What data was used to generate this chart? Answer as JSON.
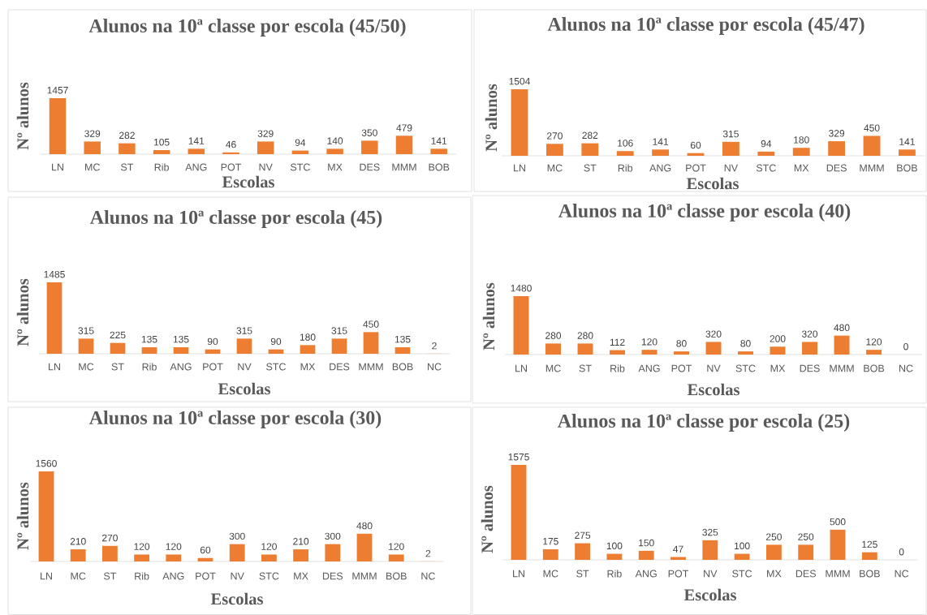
{
  "chart_data": [
    {
      "type": "bar",
      "title": "Alunos na 10ª classe por escola (45/50)",
      "xlabel": "Escolas",
      "ylabel": "Nº alunos",
      "categories": [
        "LN",
        "MC",
        "ST",
        "Rib",
        "ANG",
        "POT",
        "NV",
        "STC",
        "MX",
        "DES",
        "MMM",
        "BOB"
      ],
      "values": [
        1457,
        329,
        282,
        105,
        141,
        46,
        329,
        94,
        140,
        350,
        479,
        141
      ],
      "color": "#ed7d31",
      "data_labels": true,
      "tick_labels": "x"
    },
    {
      "type": "bar",
      "title": "Alunos na 10ª classe por escola (45/47)",
      "xlabel": "Escolas",
      "ylabel": "Nº alunos",
      "categories": [
        "LN",
        "MC",
        "ST",
        "Rib",
        "ANG",
        "POT",
        "NV",
        "STC",
        "MX",
        "DES",
        "MMM",
        "BOB"
      ],
      "values": [
        1504,
        270,
        282,
        106,
        141,
        60,
        315,
        94,
        180,
        329,
        450,
        141
      ],
      "color": "#ed7d31",
      "data_labels": true,
      "tick_labels": "x"
    },
    {
      "type": "bar",
      "title": "Alunos na 10ª classe por escola (45)",
      "xlabel": "Escolas",
      "ylabel": "Nº alunos",
      "categories": [
        "LN",
        "MC",
        "ST",
        "Rib",
        "ANG",
        "POT",
        "NV",
        "STC",
        "MX",
        "DES",
        "MMM",
        "BOB",
        "NC"
      ],
      "values": [
        1485,
        315,
        225,
        135,
        135,
        90,
        315,
        90,
        180,
        315,
        450,
        135,
        2
      ],
      "color": "#ed7d31",
      "data_labels": true,
      "tick_labels": "x"
    },
    {
      "type": "bar",
      "title": "Alunos na 10ª classe por escola (40)",
      "xlabel": "Escolas",
      "ylabel": "Nº alunos",
      "categories": [
        "LN",
        "MC",
        "ST",
        "Rib",
        "ANG",
        "POT",
        "NV",
        "STC",
        "MX",
        "DES",
        "MMM",
        "BOB",
        "NC"
      ],
      "values": [
        1480,
        280,
        280,
        112,
        120,
        80,
        320,
        80,
        200,
        320,
        480,
        120,
        0
      ],
      "color": "#ed7d31",
      "data_labels": true,
      "tick_labels": "x"
    },
    {
      "type": "bar",
      "title": "Alunos na 10ª classe por escola (30)",
      "xlabel": "Escolas",
      "ylabel": "Nº alunos",
      "categories": [
        "LN",
        "MC",
        "ST",
        "Rib",
        "ANG",
        "POT",
        "NV",
        "STC",
        "MX",
        "DES",
        "MMM",
        "BOB",
        "NC"
      ],
      "values": [
        1560,
        210,
        270,
        120,
        120,
        60,
        300,
        120,
        210,
        300,
        480,
        120,
        2
      ],
      "color": "#ed7d31",
      "data_labels": true,
      "tick_labels": "x"
    },
    {
      "type": "bar",
      "title": "Alunos na 10ª classe por escola (25)",
      "xlabel": "Escolas",
      "ylabel": "Nº alunos",
      "categories": [
        "LN",
        "MC",
        "ST",
        "Rib",
        "ANG",
        "POT",
        "NV",
        "STC",
        "MX",
        "DES",
        "MMM",
        "BOB",
        "NC"
      ],
      "values": [
        1575,
        175,
        275,
        100,
        150,
        47,
        325,
        100,
        250,
        250,
        500,
        125,
        0
      ],
      "color": "#ed7d31",
      "data_labels": true,
      "tick_labels": "x"
    }
  ]
}
